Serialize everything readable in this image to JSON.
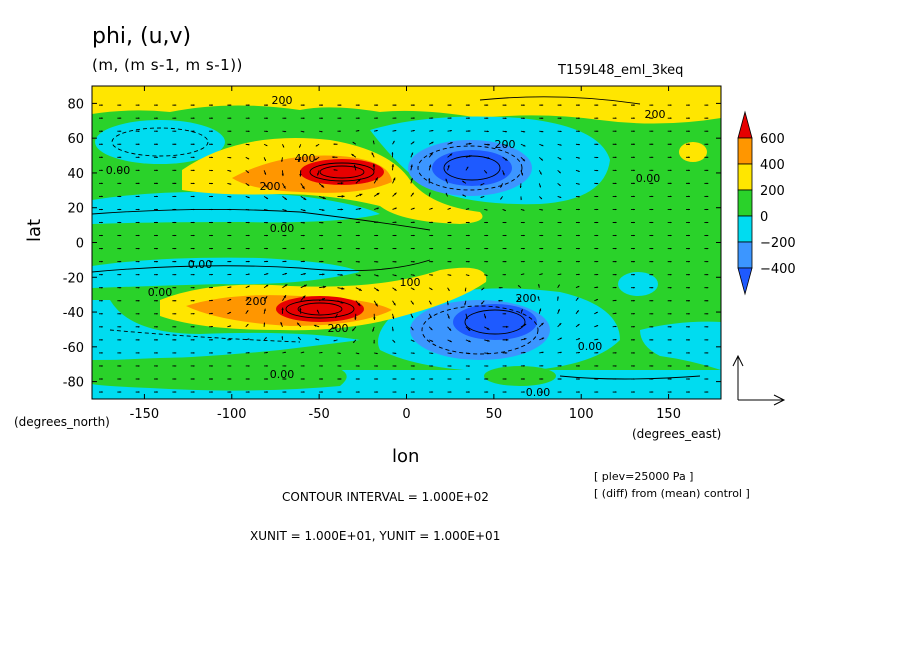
{
  "chart_data": {
    "type": "heatmap",
    "title": "phi, (u,v)",
    "subtitle": "(m, (m s-1, m s-1))",
    "run_label": "T159L48_eml_3keq",
    "xlabel": "lon",
    "ylabel": "lat",
    "x_units": "(degrees_east)",
    "y_units": "(degrees_north)",
    "xlim": [
      -180,
      180
    ],
    "ylim": [
      -90,
      90
    ],
    "x_ticks": [
      -150,
      -100,
      -50,
      0,
      50,
      100,
      150
    ],
    "y_ticks": [
      -80,
      -60,
      -40,
      -20,
      0,
      20,
      40,
      60,
      80
    ],
    "colorbar": {
      "levels": [
        -400,
        -200,
        0,
        200,
        400,
        600
      ],
      "labels": [
        "600",
        "400",
        "200",
        "0",
        "−200",
        "−400"
      ],
      "colors": [
        "#1e5aff",
        "#3c96ff",
        "#00dcf0",
        "#2ad22a",
        "#ffe600",
        "#ff9600",
        "#e60000"
      ]
    },
    "contour_labels": [
      "200",
      "200",
      "400",
      "200",
      "0.00",
      "200",
      "0.00",
      "0.00",
      "0.00",
      "0.00",
      "200",
      "100",
      "200",
      "200",
      "0.00",
      "0.00",
      "0.00"
    ],
    "features": [
      {
        "kind": "high",
        "lon": -40,
        "lat": 38,
        "value": 600
      },
      {
        "kind": "low",
        "lon": 40,
        "lat": 42,
        "value": -400
      },
      {
        "kind": "high",
        "lon": -45,
        "lat": -38,
        "value": 600
      },
      {
        "kind": "low",
        "lon": 55,
        "lat": -42,
        "value": -400
      }
    ],
    "contour_interval": "CONTOUR INTERVAL = 1.000E+02",
    "vector_units": "XUNIT = 1.000E+01, YUNIT = 1.000E+01",
    "plev": "[ plev=25000 Pa ]",
    "diff_note": "[ (diff) from (mean) control ]"
  }
}
